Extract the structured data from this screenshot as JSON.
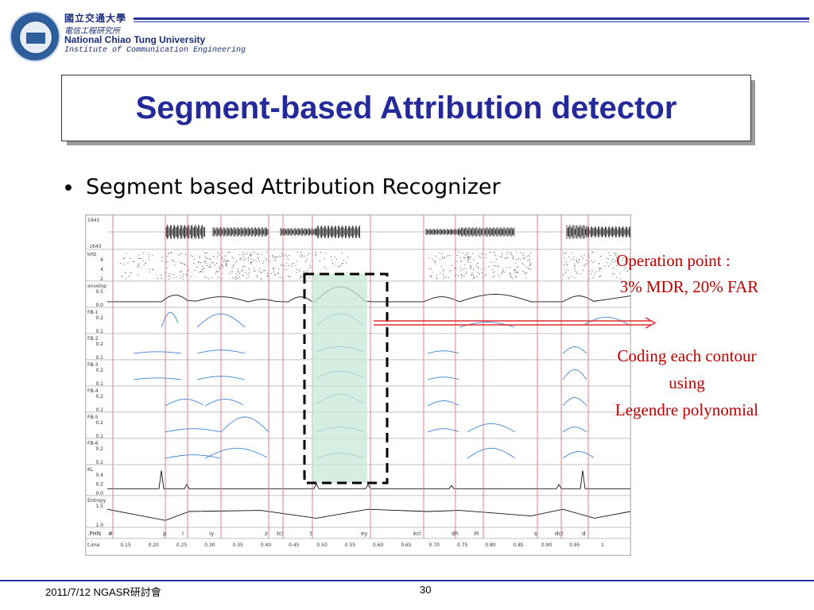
{
  "header": {
    "univ_cn": "國立交通大學",
    "inst_cn": "電信工程研究所",
    "univ_en": "National Chiao Tung University",
    "inst_en": "Institute of Communication Engineering"
  },
  "title": "Segment-based Attribution detector",
  "bullet": "Segment based Attribution Recognizer",
  "figure": {
    "waveform_top": "1941",
    "waveform_bottom": "-1643",
    "panels": [
      {
        "name": "kHz",
        "ticks": [
          "6",
          "4",
          "2"
        ]
      },
      {
        "name": "envelop",
        "ticks": [
          "0.5",
          "0.0"
        ]
      },
      {
        "name": "FB-1",
        "ticks": [
          "0.2",
          "0.1"
        ]
      },
      {
        "name": "FB-2",
        "ticks": [
          "0.2",
          "0.1"
        ]
      },
      {
        "name": "FB-3",
        "ticks": [
          "0.2",
          "0.1"
        ]
      },
      {
        "name": "FB-4",
        "ticks": [
          "0.2",
          "0.1"
        ]
      },
      {
        "name": "FB-5",
        "ticks": [
          "0.2",
          "0.1"
        ]
      },
      {
        "name": "FB-6",
        "ticks": [
          "0.2",
          "0.1"
        ]
      },
      {
        "name": "KL",
        "ticks": [
          "0.4",
          "0.2",
          "0.0"
        ]
      },
      {
        "name": "Entropy",
        "ticks": [
          "1.5",
          "1.0"
        ]
      }
    ],
    "phn_label": ".PHN",
    "phonemes": [
      "#",
      "p",
      "l",
      "iy",
      "z",
      "tcl",
      "t",
      "ey",
      "kcl",
      "dh",
      "ih",
      "s",
      "dcl",
      "d"
    ],
    "time_label": "t.ime",
    "time_ticks": [
      "0.15",
      "0.20",
      "0.25",
      "0.30",
      "0.35",
      "0.40",
      "0.45",
      "0.50",
      "0.55",
      "0.60",
      "0.65",
      "0.70",
      "0.75",
      "0.80",
      "0.85",
      "0.90",
      "0.95",
      "1"
    ]
  },
  "annotations": {
    "op_line1": "Operation point :",
    "op_line2": "3% MDR, 20% FAR",
    "coding_line1": "Coding  each contour",
    "coding_line2": "using",
    "coding_line3": "Legendre polynomial"
  },
  "footer": {
    "date": "2011/7/12 NGASR研討會",
    "page": "30"
  },
  "colors": {
    "title": "#242a99",
    "annotation": "#c00000",
    "accent_line": "#2633a0",
    "contour": "#3f86d8",
    "segment_line": "#e06060",
    "highlight": "#c8e8d8"
  }
}
